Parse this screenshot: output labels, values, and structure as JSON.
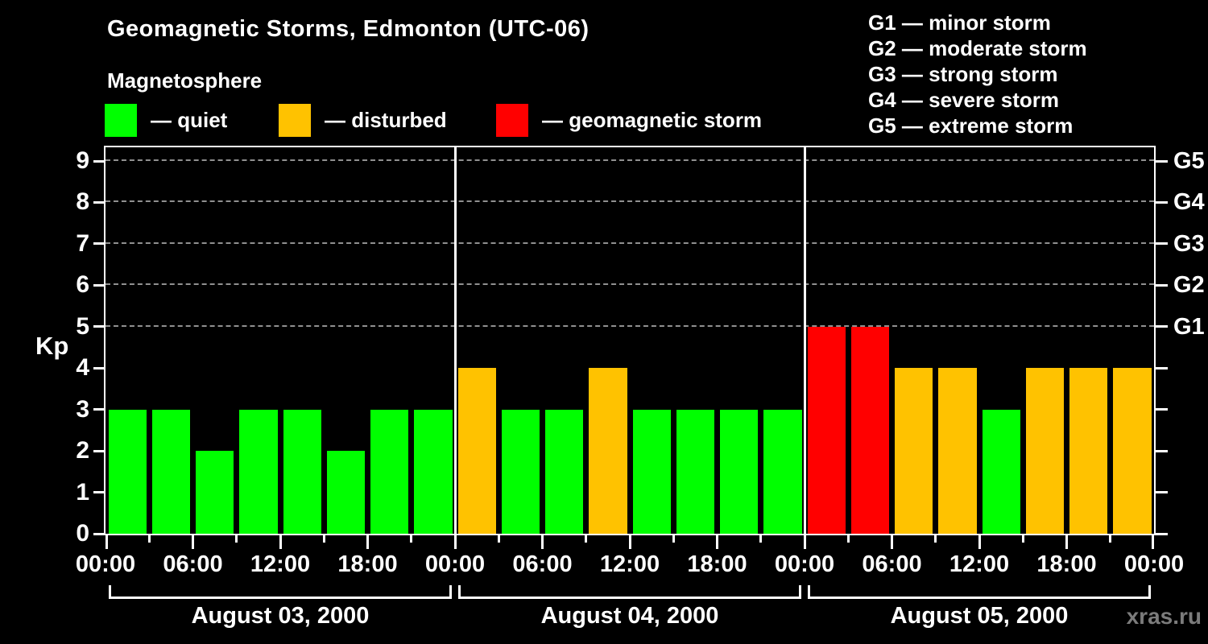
{
  "title": "Geomagnetic Storms, Edmonton (UTC-06)",
  "watermark": "xras.ru",
  "legend": {
    "heading": "Magnetosphere",
    "items": [
      {
        "name": "quiet",
        "label": "— quiet",
        "color": "#00ff00"
      },
      {
        "name": "disturbed",
        "label": "— disturbed",
        "color": "#ffc200"
      },
      {
        "name": "storm",
        "label": "— geomagnetic storm",
        "color": "#ff0000"
      }
    ]
  },
  "storm_scale": [
    {
      "label": "G1 — minor storm"
    },
    {
      "label": "G2 — moderate storm"
    },
    {
      "label": "G3 — strong storm"
    },
    {
      "label": "G4 — severe storm"
    },
    {
      "label": "G5 — extreme storm"
    }
  ],
  "chart_data": {
    "type": "bar",
    "title": "Geomagnetic Storms, Edmonton (UTC-06)",
    "ylabel": "Kp",
    "ylim": [
      0,
      9
    ],
    "yticks": [
      0,
      1,
      2,
      3,
      4,
      5,
      6,
      7,
      8,
      9
    ],
    "gridlines_at": [
      5,
      6,
      7,
      8,
      9
    ],
    "right_axis": {
      "5": "G1",
      "6": "G2",
      "7": "G3",
      "8": "G4",
      "9": "G5"
    },
    "hours_per_bar": 3,
    "x_tick_labels": [
      "00:00",
      "06:00",
      "12:00",
      "18:00",
      "00:00",
      "06:00",
      "12:00",
      "18:00",
      "00:00",
      "06:00",
      "12:00",
      "18:00",
      "00:00"
    ],
    "days": [
      {
        "date": "August 03, 2000",
        "values": [
          3,
          3,
          2,
          3,
          3,
          2,
          3,
          3
        ]
      },
      {
        "date": "August 04, 2000",
        "values": [
          4,
          3,
          3,
          4,
          3,
          3,
          3,
          3
        ]
      },
      {
        "date": "August 05, 2000",
        "values": [
          5,
          5,
          4,
          4,
          3,
          4,
          4,
          4
        ]
      }
    ],
    "color_rules": {
      "storm_min": 5,
      "disturbed_min": 4
    },
    "colors": {
      "quiet": "#00ff00",
      "disturbed": "#ffc200",
      "storm": "#ff0000",
      "grid": "#909090",
      "axis": "#ffffff",
      "background": "#000000"
    },
    "legend_position": "top-left",
    "grid": "dashed horizontal at G-levels only"
  }
}
